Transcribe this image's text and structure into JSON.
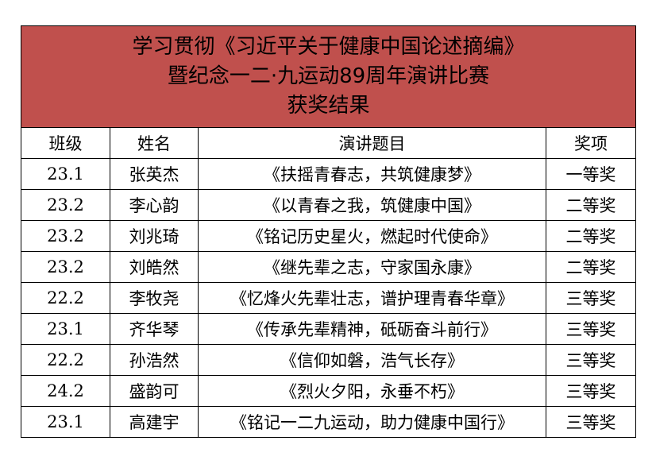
{
  "title": {
    "line1": "学习贯彻《习近平关于健康中国论述摘编》",
    "line2": "暨纪念一二·九运动89周年演讲比赛",
    "line3": "获奖结果",
    "background_color": "#c0504d"
  },
  "headers": [
    "班级",
    "姓名",
    "演讲题目",
    "奖项"
  ],
  "rows": [
    [
      "23.1",
      "张英杰",
      "《扶摇青春志，共筑健康梦》",
      "一等奖"
    ],
    [
      "23.2",
      "李心韵",
      "《以青春之我，筑健康中国》",
      "二等奖"
    ],
    [
      "23.2",
      "刘兆琦",
      "《铭记历史星火，燃起时代使命》",
      "二等奖"
    ],
    [
      "23.2",
      "刘皓然",
      "《继先辈之志，守家国永康》",
      "二等奖"
    ],
    [
      "22.2",
      "李牧尧",
      "《忆烽火先辈壮志，谱护理青春华章》",
      "三等奖"
    ],
    [
      "23.1",
      "齐华琴",
      "《传承先辈精神，砥砺奋斗前行》",
      "三等奖"
    ],
    [
      "22.2",
      "孙浩然",
      "《信仰如磐，浩气长存》",
      "三等奖"
    ],
    [
      "24.2",
      "盛韵可",
      "《烈火夕阳，永垂不朽》",
      "三等奖"
    ],
    [
      "23.1",
      "高建宇",
      "《铭记一二九运动，助力健康中国行》",
      "三等奖"
    ]
  ]
}
